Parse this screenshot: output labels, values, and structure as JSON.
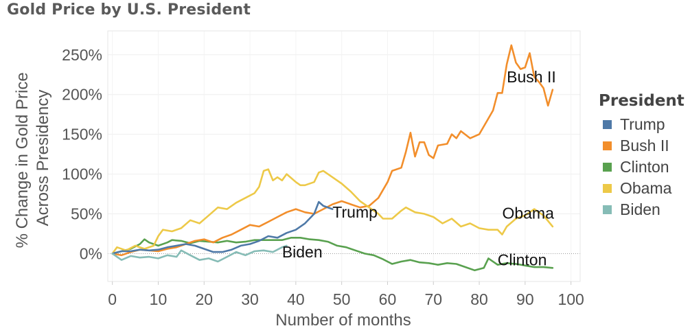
{
  "title": "Gold Price by U.S. President",
  "legend": {
    "title": "President",
    "items": [
      {
        "label": "Trump",
        "color": "#4e79a7"
      },
      {
        "label": "Bush II",
        "color": "#f28e2b"
      },
      {
        "label": "Clinton",
        "color": "#59a14f"
      },
      {
        "label": "Obama",
        "color": "#edc948"
      },
      {
        "label": "Biden",
        "color": "#86bcb6"
      }
    ]
  },
  "chart_data": {
    "type": "line",
    "title": "Gold Price by U.S. President",
    "xlabel": "Number of months",
    "ylabel": [
      "% Change in Gold Price",
      "Across Presidency"
    ],
    "xlim": [
      -1,
      102
    ],
    "ylim": [
      -35,
      280
    ],
    "x_ticks": [
      "0",
      "10",
      "20",
      "30",
      "40",
      "50",
      "60",
      "70",
      "80",
      "90",
      "100"
    ],
    "y_ticks": [
      "0%",
      "50%",
      "100%",
      "150%",
      "200%",
      "250%"
    ],
    "grid": true,
    "legend_position": "right",
    "series": [
      {
        "name": "Clinton",
        "color": "#59a14f",
        "label": "Clinton",
        "points": [
          [
            0,
            0
          ],
          [
            2,
            3
          ],
          [
            4,
            6
          ],
          [
            6,
            12
          ],
          [
            7,
            18
          ],
          [
            8,
            14
          ],
          [
            10,
            10
          ],
          [
            12,
            14
          ],
          [
            13,
            17
          ],
          [
            15,
            16
          ],
          [
            17,
            13
          ],
          [
            19,
            16
          ],
          [
            21,
            15
          ],
          [
            23,
            14
          ],
          [
            25,
            16
          ],
          [
            27,
            14
          ],
          [
            29,
            15
          ],
          [
            31,
            17
          ],
          [
            33,
            17
          ],
          [
            35,
            17
          ],
          [
            37,
            17
          ],
          [
            39,
            20
          ],
          [
            41,
            20
          ],
          [
            43,
            18
          ],
          [
            45,
            17
          ],
          [
            47,
            15
          ],
          [
            49,
            10
          ],
          [
            51,
            8
          ],
          [
            53,
            4
          ],
          [
            55,
            0
          ],
          [
            57,
            -2
          ],
          [
            59,
            -7
          ],
          [
            61,
            -13
          ],
          [
            63,
            -10
          ],
          [
            65,
            -8
          ],
          [
            67,
            -11
          ],
          [
            69,
            -12
          ],
          [
            71,
            -14
          ],
          [
            73,
            -12
          ],
          [
            75,
            -13
          ],
          [
            77,
            -17
          ],
          [
            79,
            -21
          ],
          [
            81,
            -18
          ],
          [
            82,
            -6
          ],
          [
            84,
            -14
          ],
          [
            86,
            -12
          ],
          [
            88,
            -13
          ],
          [
            90,
            -15
          ],
          [
            92,
            -17
          ],
          [
            94,
            -17
          ],
          [
            96,
            -18
          ]
        ]
      },
      {
        "name": "Bush II",
        "color": "#f28e2b",
        "label": "Bush II",
        "points": [
          [
            0,
            0
          ],
          [
            2,
            -2
          ],
          [
            4,
            2
          ],
          [
            6,
            5
          ],
          [
            8,
            4
          ],
          [
            10,
            3
          ],
          [
            12,
            6
          ],
          [
            14,
            8
          ],
          [
            16,
            12
          ],
          [
            18,
            16
          ],
          [
            20,
            18
          ],
          [
            22,
            14
          ],
          [
            24,
            20
          ],
          [
            26,
            24
          ],
          [
            28,
            30
          ],
          [
            30,
            36
          ],
          [
            32,
            34
          ],
          [
            34,
            40
          ],
          [
            36,
            46
          ],
          [
            38,
            52
          ],
          [
            40,
            56
          ],
          [
            42,
            52
          ],
          [
            44,
            50
          ],
          [
            46,
            56
          ],
          [
            48,
            62
          ],
          [
            50,
            66
          ],
          [
            52,
            62
          ],
          [
            54,
            58
          ],
          [
            56,
            60
          ],
          [
            58,
            70
          ],
          [
            60,
            90
          ],
          [
            61,
            104
          ],
          [
            63,
            108
          ],
          [
            64,
            128
          ],
          [
            65,
            152
          ],
          [
            66,
            122
          ],
          [
            67,
            140
          ],
          [
            68,
            140
          ],
          [
            69,
            124
          ],
          [
            70,
            120
          ],
          [
            71,
            136
          ],
          [
            73,
            138
          ],
          [
            74,
            150
          ],
          [
            75,
            145
          ],
          [
            76,
            154
          ],
          [
            78,
            145
          ],
          [
            80,
            150
          ],
          [
            82,
            170
          ],
          [
            83,
            180
          ],
          [
            84,
            202
          ],
          [
            85,
            202
          ],
          [
            86,
            238
          ],
          [
            87,
            262
          ],
          [
            88,
            240
          ],
          [
            89,
            232
          ],
          [
            90,
            234
          ],
          [
            91,
            252
          ],
          [
            92,
            222
          ],
          [
            93,
            216
          ],
          [
            94,
            208
          ],
          [
            95,
            186
          ],
          [
            96,
            206
          ]
        ]
      },
      {
        "name": "Obama",
        "color": "#edc948",
        "label": "Obama",
        "points": [
          [
            0,
            0
          ],
          [
            1,
            8
          ],
          [
            3,
            4
          ],
          [
            5,
            10
          ],
          [
            7,
            6
          ],
          [
            9,
            10
          ],
          [
            10,
            22
          ],
          [
            11,
            30
          ],
          [
            13,
            28
          ],
          [
            15,
            32
          ],
          [
            17,
            42
          ],
          [
            19,
            38
          ],
          [
            21,
            48
          ],
          [
            23,
            58
          ],
          [
            25,
            56
          ],
          [
            27,
            64
          ],
          [
            29,
            70
          ],
          [
            31,
            76
          ],
          [
            32,
            84
          ],
          [
            33,
            104
          ],
          [
            34,
            106
          ],
          [
            35,
            92
          ],
          [
            36,
            96
          ],
          [
            37,
            92
          ],
          [
            38,
            100
          ],
          [
            39,
            95
          ],
          [
            40,
            90
          ],
          [
            41,
            86
          ],
          [
            42,
            86
          ],
          [
            44,
            90
          ],
          [
            45,
            102
          ],
          [
            46,
            104
          ],
          [
            48,
            96
          ],
          [
            50,
            88
          ],
          [
            52,
            78
          ],
          [
            54,
            66
          ],
          [
            56,
            58
          ],
          [
            58,
            50
          ],
          [
            59,
            44
          ],
          [
            61,
            44
          ],
          [
            63,
            54
          ],
          [
            64,
            58
          ],
          [
            66,
            52
          ],
          [
            68,
            50
          ],
          [
            70,
            46
          ],
          [
            72,
            38
          ],
          [
            74,
            44
          ],
          [
            76,
            34
          ],
          [
            78,
            38
          ],
          [
            80,
            32
          ],
          [
            82,
            30
          ],
          [
            84,
            30
          ],
          [
            85,
            24
          ],
          [
            86,
            34
          ],
          [
            88,
            44
          ],
          [
            90,
            48
          ],
          [
            92,
            56
          ],
          [
            94,
            48
          ],
          [
            96,
            34
          ]
        ]
      },
      {
        "name": "Trump",
        "color": "#4e79a7",
        "label": "Trump",
        "points": [
          [
            0,
            0
          ],
          [
            2,
            3
          ],
          [
            4,
            3
          ],
          [
            6,
            5
          ],
          [
            8,
            4
          ],
          [
            10,
            5
          ],
          [
            12,
            8
          ],
          [
            14,
            10
          ],
          [
            16,
            12
          ],
          [
            18,
            10
          ],
          [
            20,
            6
          ],
          [
            22,
            2
          ],
          [
            24,
            2
          ],
          [
            26,
            5
          ],
          [
            28,
            10
          ],
          [
            30,
            12
          ],
          [
            32,
            16
          ],
          [
            34,
            22
          ],
          [
            36,
            20
          ],
          [
            38,
            26
          ],
          [
            40,
            30
          ],
          [
            42,
            38
          ],
          [
            44,
            50
          ],
          [
            45,
            65
          ],
          [
            46,
            60
          ],
          [
            48,
            56
          ]
        ]
      },
      {
        "name": "Biden",
        "color": "#86bcb6",
        "label": "Biden",
        "points": [
          [
            0,
            0
          ],
          [
            2,
            -8
          ],
          [
            4,
            -3
          ],
          [
            6,
            -5
          ],
          [
            8,
            -4
          ],
          [
            10,
            -6
          ],
          [
            12,
            -2
          ],
          [
            14,
            -4
          ],
          [
            15,
            4
          ],
          [
            17,
            -2
          ],
          [
            19,
            -8
          ],
          [
            21,
            -6
          ],
          [
            23,
            -10
          ],
          [
            25,
            -4
          ],
          [
            27,
            2
          ],
          [
            29,
            -2
          ],
          [
            31,
            3
          ],
          [
            33,
            4
          ],
          [
            35,
            2
          ],
          [
            37,
            8
          ],
          [
            38,
            10
          ]
        ]
      }
    ]
  }
}
